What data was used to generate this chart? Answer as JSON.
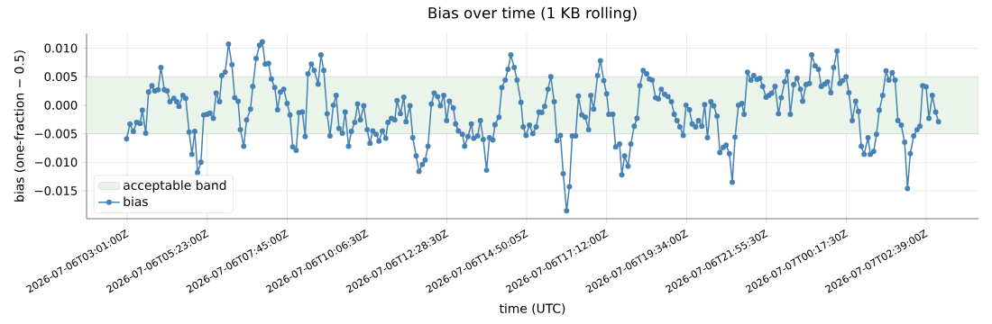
{
  "chart_data": {
    "type": "line",
    "title": "Bias over time (1 KB rolling)",
    "xlabel": "time (UTC)",
    "ylabel": "bias (one-fraction − 0.5)",
    "xlim": [
      "2026-07-06T01:49",
      "2026-07-07T04:12"
    ],
    "ylim": [
      -0.0199,
      0.0126
    ],
    "xticks": [
      {
        "value": "2026-07-06T03:01",
        "label": "2026-07-06T03:01:00Z"
      },
      {
        "value": "2026-07-06T05:23",
        "label": "2026-07-06T05:23:00Z"
      },
      {
        "value": "2026-07-06T07:45",
        "label": "2026-07-06T07:45:00Z"
      },
      {
        "value": "2026-07-06T10:06:30",
        "label": "2026-07-06T10:06:30Z"
      },
      {
        "value": "2026-07-06T12:28:30",
        "label": "2026-07-06T12:28:30Z"
      },
      {
        "value": "2026-07-06T14:50:05",
        "label": "2026-07-06T14:50:05Z"
      },
      {
        "value": "2026-07-06T17:12",
        "label": "2026-07-06T17:12:00Z"
      },
      {
        "value": "2026-07-06T19:34",
        "label": "2026-07-06T19:34:00Z"
      },
      {
        "value": "2026-07-06T21:55:30",
        "label": "2026-07-06T21:55:30Z"
      },
      {
        "value": "2026-07-07T00:17:30",
        "label": "2026-07-07T00:17:30Z"
      },
      {
        "value": "2026-07-07T02:39",
        "label": "2026-07-07T02:39:00Z"
      }
    ],
    "yticks": [
      {
        "value": -0.015,
        "label": "−0.015"
      },
      {
        "value": -0.01,
        "label": "−0.010"
      },
      {
        "value": -0.005,
        "label": "−0.005"
      },
      {
        "value": 0,
        "label": "0.000"
      },
      {
        "value": 0.005,
        "label": "0.005"
      },
      {
        "value": 0.01,
        "label": "0.010"
      }
    ],
    "grid": true,
    "legend": "bottom left",
    "marker": "circle",
    "line_style": "solid",
    "bands": [
      {
        "axis": "y",
        "from": -0.005,
        "to": 0.005,
        "label": "acceptable band",
        "color": "#eaf4ea"
      }
    ],
    "series": [
      {
        "name": "bias",
        "color": "#4682b4",
        "x": [
          "2026-07-06T03:00",
          "2026-07-06T03:06",
          "2026-07-06T03:12",
          "2026-07-06T03:18",
          "2026-07-06T03:24",
          "2026-07-06T03:28",
          "2026-07-06T03:34",
          "2026-07-06T03:39",
          "2026-07-06T03:45",
          "2026-07-06T03:50",
          "2026-07-06T03:56",
          "2026-07-06T04:01",
          "2026-07-06T04:07",
          "2026-07-06T04:12",
          "2026-07-06T04:17",
          "2026-07-06T04:24",
          "2026-07-06T04:29",
          "2026-07-06T04:33",
          "2026-07-06T04:40",
          "2026-07-06T04:45",
          "2026-07-06T04:51",
          "2026-07-06T04:56",
          "2026-07-06T05:01",
          "2026-07-06T05:06",
          "2026-07-06T05:12",
          "2026-07-06T05:17",
          "2026-07-06T05:23",
          "2026-07-06T05:28",
          "2026-07-06T05:34",
          "2026-07-06T05:39",
          "2026-07-06T05:45",
          "2026-07-06T05:49",
          "2026-07-06T05:55",
          "2026-07-06T06:01",
          "2026-07-06T06:07",
          "2026-07-06T06:12",
          "2026-07-06T06:18",
          "2026-07-06T06:22",
          "2026-07-06T06:28",
          "2026-07-06T06:33",
          "2026-07-06T06:40",
          "2026-07-06T06:44",
          "2026-07-06T06:50",
          "2026-07-06T06:56",
          "2026-07-06T07:01",
          "2026-07-06T07:06",
          "2026-07-06T07:12",
          "2026-07-06T07:17",
          "2026-07-06T07:23",
          "2026-07-06T07:28",
          "2026-07-06T07:33",
          "2026-07-06T07:39",
          "2026-07-06T07:45",
          "2026-07-06T07:50",
          "2026-07-06T07:55",
          "2026-07-06T08:01",
          "2026-07-06T08:06",
          "2026-07-06T08:12",
          "2026-07-06T08:17",
          "2026-07-06T08:22",
          "2026-07-06T08:28",
          "2026-07-06T08:33",
          "2026-07-06T08:40",
          "2026-07-06T08:45",
          "2026-07-06T08:50",
          "2026-07-06T08:56",
          "2026-07-06T09:01",
          "2026-07-06T09:07",
          "2026-07-06T09:12",
          "2026-07-06T09:17",
          "2026-07-06T09:23",
          "2026-07-06T09:28",
          "2026-07-06T09:34",
          "2026-07-06T09:39",
          "2026-07-06T09:45",
          "2026-07-06T09:50",
          "2026-07-06T09:55",
          "2026-07-06T10:01",
          "2026-07-06T10:07",
          "2026-07-06T10:12",
          "2026-07-06T10:17",
          "2026-07-06T10:23",
          "2026-07-06T10:28",
          "2026-07-06T10:34",
          "2026-07-06T10:40",
          "2026-07-06T10:44",
          "2026-07-06T10:50",
          "2026-07-06T10:56",
          "2026-07-06T11:00",
          "2026-07-06T11:06",
          "2026-07-06T11:12",
          "2026-07-06T11:16",
          "2026-07-06T11:23",
          "2026-07-06T11:28",
          "2026-07-06T11:34",
          "2026-07-06T11:39",
          "2026-07-06T11:45",
          "2026-07-06T11:50",
          "2026-07-06T11:55",
          "2026-07-06T12:01",
          "2026-07-06T12:06",
          "2026-07-06T12:12",
          "2026-07-06T12:17",
          "2026-07-06T12:23",
          "2026-07-06T12:28",
          "2026-07-06T12:33",
          "2026-07-06T12:40",
          "2026-07-06T12:44",
          "2026-07-06T12:49",
          "2026-07-06T12:56",
          "2026-07-06T13:00",
          "2026-07-06T13:06",
          "2026-07-06T13:12",
          "2026-07-06T13:16",
          "2026-07-06T13:23",
          "2026-07-06T13:28",
          "2026-07-06T13:33",
          "2026-07-06T13:39",
          "2026-07-06T13:44",
          "2026-07-06T13:50",
          "2026-07-06T13:54",
          "2026-07-06T14:01",
          "2026-07-06T14:06",
          "2026-07-06T14:12",
          "2026-07-06T14:17",
          "2026-07-06T14:22",
          "2026-07-06T14:28",
          "2026-07-06T14:33",
          "2026-07-06T14:40",
          "2026-07-06T14:44",
          "2026-07-06T14:49",
          "2026-07-06T14:55",
          "2026-07-06T15:01",
          "2026-07-06T15:07",
          "2026-07-06T15:12",
          "2026-07-06T15:17",
          "2026-07-06T15:22",
          "2026-07-06T15:28",
          "2026-07-06T15:33",
          "2026-07-06T15:39",
          "2026-07-06T15:44",
          "2026-07-06T15:50",
          "2026-07-06T15:55",
          "2026-07-06T16:01",
          "2026-07-06T16:06",
          "2026-07-06T16:11",
          "2026-07-06T16:17",
          "2026-07-06T16:22",
          "2026-07-06T16:28",
          "2026-07-06T16:34",
          "2026-07-06T16:40",
          "2026-07-06T16:44",
          "2026-07-06T16:49",
          "2026-07-06T16:56",
          "2026-07-06T17:01",
          "2026-07-06T17:07",
          "2026-07-06T17:12",
          "2026-07-06T17:16",
          "2026-07-06T17:23",
          "2026-07-06T17:28",
          "2026-07-06T17:35",
          "2026-07-06T17:39",
          "2026-07-06T17:44",
          "2026-07-06T17:50",
          "2026-07-06T17:55",
          "2026-07-06T18:01",
          "2026-07-06T18:06",
          "2026-07-06T18:11",
          "2026-07-06T18:17",
          "2026-07-06T18:23",
          "2026-07-06T18:28",
          "2026-07-06T18:33",
          "2026-07-06T18:39",
          "2026-07-06T18:44",
          "2026-07-06T18:49",
          "2026-07-06T18:55",
          "2026-07-06T19:01",
          "2026-07-06T19:07",
          "2026-07-06T19:12",
          "2026-07-06T19:17",
          "2026-07-06T19:22",
          "2026-07-06T19:28",
          "2026-07-06T19:33",
          "2026-07-06T19:39",
          "2026-07-06T19:44",
          "2026-07-06T19:50",
          "2026-07-06T19:55",
          "2026-07-06T20:01",
          "2026-07-06T20:06",
          "2026-07-06T20:11",
          "2026-07-06T20:17",
          "2026-07-06T20:22",
          "2026-07-06T20:28",
          "2026-07-06T20:33",
          "2026-07-06T20:39",
          "2026-07-06T20:44",
          "2026-07-06T20:50",
          "2026-07-06T20:55",
          "2026-07-06T21:00",
          "2026-07-06T21:06",
          "2026-07-06T21:12",
          "2026-07-06T21:16",
          "2026-07-06T21:22",
          "2026-07-06T21:28",
          "2026-07-06T21:33",
          "2026-07-06T21:39",
          "2026-07-06T21:44",
          "2026-07-06T21:49",
          "2026-07-06T21:55",
          "2026-07-06T22:00",
          "2026-07-06T22:05",
          "2026-07-06T22:11",
          "2026-07-06T22:17",
          "2026-07-06T22:22",
          "2026-07-06T22:28",
          "2026-07-06T22:33",
          "2026-07-06T22:38",
          "2026-07-06T22:44",
          "2026-07-06T22:50",
          "2026-07-06T22:56",
          "2026-07-06T23:00",
          "2026-07-06T23:06",
          "2026-07-06T23:12",
          "2026-07-06T23:16",
          "2026-07-06T23:22",
          "2026-07-06T23:28",
          "2026-07-06T23:33",
          "2026-07-06T23:39",
          "2026-07-06T23:44",
          "2026-07-06T23:50",
          "2026-07-06T23:55",
          "2026-07-07T00:01",
          "2026-07-07T00:06",
          "2026-07-07T00:11",
          "2026-07-07T00:17",
          "2026-07-07T00:22",
          "2026-07-07T00:28",
          "2026-07-07T00:34",
          "2026-07-07T00:39",
          "2026-07-07T00:44",
          "2026-07-07T00:49",
          "2026-07-07T00:56",
          "2026-07-07T01:00",
          "2026-07-07T01:06",
          "2026-07-07T01:11",
          "2026-07-07T01:16",
          "2026-07-07T01:22",
          "2026-07-07T01:28",
          "2026-07-07T01:33",
          "2026-07-07T01:39",
          "2026-07-07T01:44",
          "2026-07-07T01:49",
          "2026-07-07T01:55",
          "2026-07-07T02:01",
          "2026-07-07T02:06",
          "2026-07-07T02:11",
          "2026-07-07T02:17",
          "2026-07-07T02:23",
          "2026-07-07T02:28",
          "2026-07-07T02:33",
          "2026-07-07T02:39",
          "2026-07-07T02:44",
          "2026-07-07T02:50",
          "2026-07-07T02:56",
          "2026-07-07T03:01"
        ],
        "values": [
          -0.0059,
          -0.0033,
          -0.0046,
          -0.003,
          -0.0032,
          -0.0009,
          -0.0049,
          0.0023,
          0.0034,
          0.0025,
          0.0027,
          0.0066,
          0.0027,
          0.0025,
          0.0006,
          0.0012,
          0.0006,
          -0.0002,
          0.0017,
          0.0012,
          -0.0047,
          -0.0086,
          -0.0046,
          -0.0118,
          -0.01,
          -0.0017,
          -0.0016,
          -0.0014,
          -0.0023,
          0.0021,
          0.0006,
          0.0052,
          0.0058,
          0.0107,
          0.0071,
          0.0013,
          0.0007,
          -0.0043,
          -0.0072,
          -0.0026,
          -0.0007,
          0.0033,
          0.0082,
          0.0105,
          0.0111,
          0.0072,
          0.0073,
          0.0046,
          0.0031,
          -0.0008,
          0.0023,
          0.0028,
          0.0003,
          -0.0017,
          -0.0073,
          -0.0079,
          -0.0013,
          -0.0012,
          -0.0055,
          0.0055,
          0.0072,
          0.0061,
          0.0037,
          0.0088,
          0.0061,
          -0.0015,
          -0.0054,
          0.0,
          0.0017,
          -0.0041,
          -0.0049,
          -0.0012,
          -0.0072,
          -0.0046,
          -0.003,
          0.0002,
          -0.0026,
          -0.0001,
          -0.0043,
          -0.0067,
          -0.0045,
          -0.0051,
          -0.0063,
          -0.0045,
          -0.0058,
          -0.003,
          -0.0023,
          -0.0026,
          0.0008,
          -0.0015,
          0.0014,
          -0.0029,
          -0.0001,
          -0.0057,
          -0.0089,
          -0.0116,
          -0.0104,
          -0.0096,
          -0.0072,
          0.0002,
          0.0021,
          0.0015,
          -0.0001,
          0.0017,
          -0.0027,
          0.0007,
          -0.0005,
          -0.0033,
          -0.0045,
          -0.0051,
          -0.0072,
          -0.0055,
          -0.0033,
          -0.0058,
          -0.0054,
          -0.0027,
          -0.006,
          -0.0114,
          -0.0057,
          -0.0061,
          -0.0034,
          -0.0021,
          0.0031,
          0.0044,
          0.0063,
          0.0088,
          0.0066,
          0.0044,
          0.0005,
          -0.0038,
          -0.0053,
          -0.0035,
          -0.005,
          -0.0038,
          -0.0012,
          -0.0013,
          -0.0002,
          0.0028,
          0.005,
          0.0006,
          -0.0062,
          -0.0053,
          -0.012,
          -0.0185,
          -0.0143,
          -0.0054,
          -0.0054,
          0.0016,
          -0.0017,
          -0.0021,
          -0.0043,
          0.0017,
          -0.0007,
          0.0052,
          0.0078,
          0.0043,
          0.002,
          -0.0016,
          -0.0016,
          -0.0073,
          -0.0068,
          -0.0122,
          -0.0089,
          -0.0107,
          -0.0068,
          -0.0037,
          -0.0023,
          0.0034,
          0.0061,
          0.0055,
          0.0046,
          0.0044,
          0.0013,
          0.0011,
          0.0028,
          0.0019,
          0.0015,
          0.0006,
          -0.0016,
          -0.0027,
          -0.0038,
          -0.0053,
          0.0,
          -0.0008,
          -0.0033,
          -0.0038,
          -0.0027,
          -0.0037,
          0.0001,
          -0.0057,
          0.0006,
          -0.0001,
          -0.0019,
          -0.0083,
          -0.0074,
          -0.007,
          -0.0085,
          -0.0135,
          -0.0056,
          0.0,
          0.0003,
          -0.0016,
          0.0058,
          0.0044,
          0.0052,
          0.0045,
          0.0047,
          0.0033,
          0.0014,
          0.0017,
          0.0021,
          0.0033,
          -0.0015,
          0.0013,
          0.0041,
          0.0059,
          -0.0016,
          0.0036,
          0.0047,
          0.0028,
          0.0007,
          0.0036,
          0.0038,
          0.0088,
          0.0069,
          0.0063,
          0.0033,
          0.0037,
          0.0041,
          0.0022,
          0.0066,
          0.0095,
          0.0038,
          0.0043,
          0.005,
          0.0022,
          -0.0027,
          0.0007,
          -0.0011,
          -0.0072,
          -0.0086,
          -0.0057,
          -0.0086,
          -0.0081,
          -0.0051,
          -0.0009,
          0.0017,
          0.006,
          0.0044,
          0.0057,
          0.0044,
          -0.0027,
          -0.0035,
          -0.0065,
          -0.0146,
          -0.0085,
          -0.0054,
          -0.0043,
          -0.0037,
          0.0034,
          0.0032,
          -0.0023,
          0.0017,
          -0.0012,
          -0.0029
        ]
      }
    ]
  }
}
